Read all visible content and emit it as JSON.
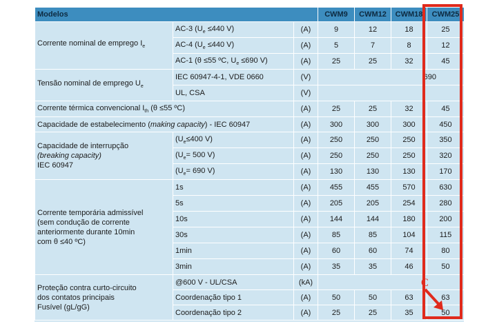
{
  "header": {
    "title": "Modelos",
    "models": [
      "CWM9",
      "CWM12",
      "CWM18",
      "CWM25"
    ]
  },
  "groups": {
    "corrente_nominal": {
      "label": "Corrente nominal de emprego I",
      "sub": "e"
    },
    "tensao": {
      "label": "Tensão nominal de emprego U",
      "sub": "e"
    },
    "termica": {
      "label_a": "Corrente térmica convencional I",
      "sub": "th",
      "label_b": " (θ ≤55 ºC)"
    },
    "estabelecimento": {
      "label_a": "Capacidade de estabelecimento (",
      "italic": "making capacity",
      "label_b": ") - IEC 60947"
    },
    "interrupcao": {
      "line1": "Capacidade de interrupção",
      "line2": "(breaking capacity)",
      "line3": "IEC 60947"
    },
    "temporaria": {
      "line1": "Corrente temporária admissível",
      "line2": "(sem condução de corrente",
      "line3": "anteriormente durante 10min",
      "line4": "com θ ≤40 ºC)"
    },
    "protecao": {
      "line1": "Proteção contra curto-circuito",
      "line2": "dos contatos principais",
      "line3": "Fusível (gL/gG)"
    }
  },
  "rows": {
    "ac3": {
      "cond": "AC-3 (U",
      "cond_b": " ≤440 V)",
      "unit": "(A)",
      "values": [
        "9",
        "12",
        "18",
        "25"
      ]
    },
    "ac4": {
      "cond": "AC-4 (U",
      "cond_b": " ≤440 V)",
      "unit": "(A)",
      "values": [
        "5",
        "7",
        "8",
        "12"
      ]
    },
    "ac1": {
      "cond": "AC-1 (θ ≤55 ºC, U",
      "cond_b": " ≤690 V)",
      "unit": "(A)",
      "values": [
        "25",
        "25",
        "32",
        "45"
      ]
    },
    "iec": {
      "cond": "IEC 60947-4-1, VDE 0660",
      "unit": "(V)",
      "value": "690"
    },
    "ul": {
      "cond": "UL, CSA",
      "unit": "(V)"
    },
    "termica": {
      "unit": "(A)",
      "values": [
        "25",
        "25",
        "32",
        "45"
      ]
    },
    "estabelecimento": {
      "unit": "(A)",
      "values": [
        "300",
        "300",
        "300",
        "450"
      ]
    },
    "int400": {
      "cond_a": "(U",
      "cond_b": "≤400 V)",
      "unit": "(A)",
      "values": [
        "250",
        "250",
        "250",
        "350"
      ]
    },
    "int500": {
      "cond_a": "(U",
      "cond_b": "= 500 V)",
      "unit": "(A)",
      "values": [
        "250",
        "250",
        "250",
        "320"
      ]
    },
    "int690": {
      "cond_a": "(U",
      "cond_b": "= 690 V)",
      "unit": "(A)",
      "values": [
        "130",
        "130",
        "130",
        "170"
      ]
    },
    "t1s": {
      "cond": "1s",
      "unit": "(A)",
      "values": [
        "455",
        "455",
        "570",
        "630"
      ]
    },
    "t5s": {
      "cond": "5s",
      "unit": "(A)",
      "values": [
        "205",
        "205",
        "254",
        "280"
      ]
    },
    "t10s": {
      "cond": "10s",
      "unit": "(A)",
      "values": [
        "144",
        "144",
        "180",
        "200"
      ]
    },
    "t30s": {
      "cond": "30s",
      "unit": "(A)",
      "values": [
        "85",
        "85",
        "104",
        "115"
      ]
    },
    "t1min": {
      "cond": "1min",
      "unit": "(A)",
      "values": [
        "60",
        "60",
        "74",
        "80"
      ]
    },
    "t3min": {
      "cond": "3min",
      "unit": "(A)",
      "values": [
        "35",
        "35",
        "46",
        "50"
      ]
    },
    "ulcsa600": {
      "cond": "@600 V - UL/CSA",
      "unit": "(kA)"
    },
    "coord1": {
      "cond": "Coordenação tipo 1",
      "unit": "(A)",
      "values": [
        "50",
        "50",
        "63",
        "63"
      ]
    },
    "coord2": {
      "cond": "Coordenação tipo 2",
      "unit": "(A)",
      "values": [
        "25",
        "25",
        "35",
        "50"
      ]
    }
  },
  "annotation": {
    "marker": "C",
    "highlight_color": "#e02a1c"
  }
}
